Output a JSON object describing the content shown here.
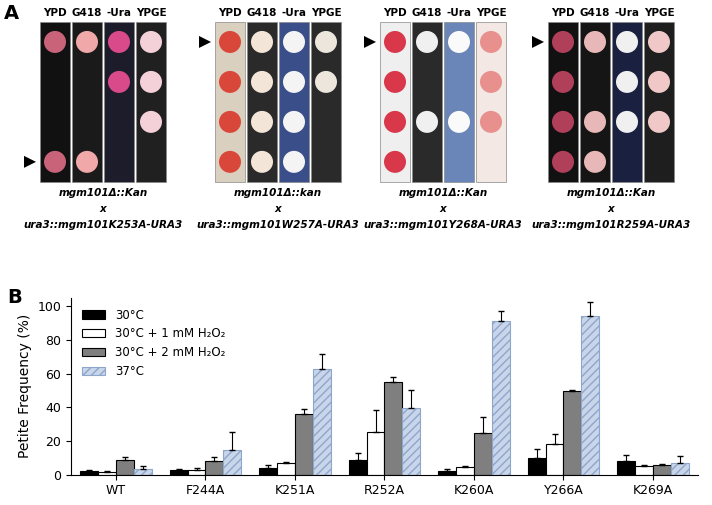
{
  "panel_a": {
    "label": "A",
    "media": [
      "YPD",
      "G418",
      "-Ura",
      "YPGE"
    ],
    "crosses": [
      {
        "parent1": "mgm101Δ::Kan",
        "joiner": "x",
        "parent2": "ura3::mgm101K253A-URA3"
      },
      {
        "parent1": "mgm101Δ::kan",
        "joiner": "x",
        "parent2": "ura3::mgm101W257A-URA3"
      },
      {
        "parent1": "mgm101Δ::Kan",
        "joiner": "x",
        "parent2": "ura3::mgm101Y268A-URA3"
      },
      {
        "parent1": "mgm101Δ::Kan",
        "joiner": "x",
        "parent2": "ura3::mgm101R259A-URA3"
      }
    ]
  },
  "chart_data": {
    "type": "bar",
    "label": "B",
    "y_label": "Petite Frequency (%)",
    "categories": [
      "WT",
      "F244A",
      "K251A",
      "R252A",
      "K260A",
      "Y266A",
      "K269A"
    ],
    "series": [
      {
        "name": "30°C",
        "color": "#000000",
        "values": [
          2,
          2.5,
          4,
          9,
          2,
          10,
          8
        ],
        "errors": [
          1,
          0.8,
          2,
          4,
          1.5,
          5,
          4
        ]
      },
      {
        "name": "30°C + 1 mM H₂O₂",
        "color": "#ffffff",
        "values": [
          1.5,
          3,
          7,
          25.5,
          4.5,
          18,
          5
        ],
        "errors": [
          0.5,
          0.8,
          0.5,
          13,
          0.5,
          6,
          1
        ]
      },
      {
        "name": "30°C + 2 mM H₂O₂",
        "color": "#7f7f7f",
        "values": [
          9,
          8,
          36,
          55,
          24.5,
          49.5,
          5.5
        ],
        "errors": [
          1.5,
          2.5,
          3,
          3,
          10,
          1,
          1
        ]
      },
      {
        "name": "37°C",
        "color": "#c9d6ea",
        "values": [
          3.5,
          14.5,
          62.5,
          39.5,
          91.5,
          94,
          7
        ],
        "errors": [
          1.5,
          11,
          9.5,
          11,
          6,
          8.5,
          4
        ]
      }
    ],
    "ylim": [
      0,
      105
    ],
    "yticks": [
      0,
      20,
      40,
      60,
      80,
      100
    ],
    "legend": "upper left"
  }
}
